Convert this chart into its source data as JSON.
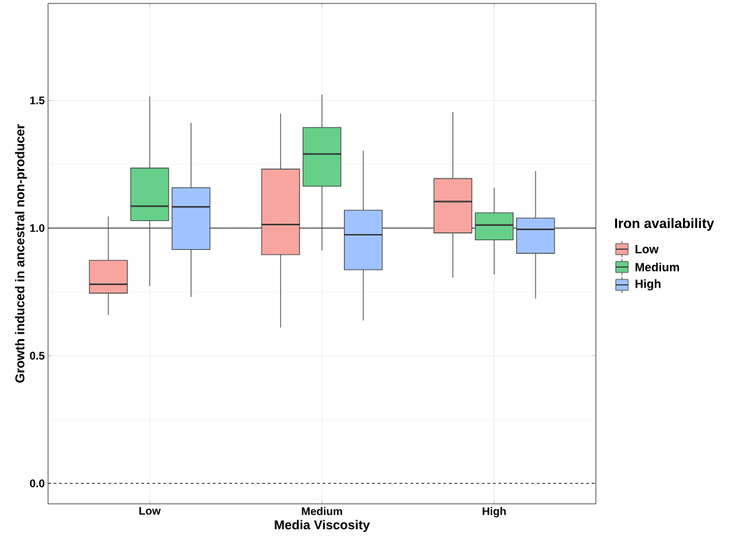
{
  "chart_data": {
    "type": "box",
    "xlabel": "Media Viscosity",
    "ylabel": "Growth induced in ancestral non-producer",
    "legend_title": "Iron availability",
    "categories": [
      "Low",
      "Medium",
      "High"
    ],
    "series": [
      {
        "name": "Low",
        "color": "#f8a59f",
        "boxes": [
          {
            "low": 0.66,
            "q1": 0.745,
            "median": 0.78,
            "q3": 0.874,
            "high": 1.046
          },
          {
            "low": 0.61,
            "q1": 0.896,
            "median": 1.014,
            "q3": 1.231,
            "high": 1.448
          },
          {
            "low": 0.806,
            "q1": 0.981,
            "median": 1.104,
            "q3": 1.194,
            "high": 1.455
          }
        ]
      },
      {
        "name": "Medium",
        "color": "#66d08a",
        "boxes": [
          {
            "low": 0.772,
            "q1": 1.029,
            "median": 1.086,
            "q3": 1.235,
            "high": 1.516
          },
          {
            "low": 0.913,
            "q1": 1.164,
            "median": 1.29,
            "q3": 1.394,
            "high": 1.523
          },
          {
            "low": 0.819,
            "q1": 0.954,
            "median": 1.012,
            "q3": 1.06,
            "high": 1.158
          }
        ]
      },
      {
        "name": "High",
        "color": "#a0c3ff",
        "boxes": [
          {
            "low": 0.73,
            "q1": 0.916,
            "median": 1.083,
            "q3": 1.158,
            "high": 1.412
          },
          {
            "low": 0.638,
            "q1": 0.837,
            "median": 0.974,
            "q3": 1.07,
            "high": 1.303
          },
          {
            "low": 0.724,
            "q1": 0.901,
            "median": 0.995,
            "q3": 1.039,
            "high": 1.224
          }
        ]
      }
    ],
    "ylim": [
      -0.08,
      1.88
    ],
    "yticks": [
      {
        "value": 0,
        "label": "0.0"
      },
      {
        "value": 0.5,
        "label": "0.5"
      },
      {
        "value": 1,
        "label": "1.0"
      },
      {
        "value": 1.5,
        "label": "1.5"
      }
    ],
    "ref_lines": [
      {
        "axis": "y",
        "value": 1,
        "line_style": "solid"
      },
      {
        "axis": "y",
        "value": 0,
        "line_style": "dashed"
      }
    ],
    "grid": true,
    "legend": "right"
  }
}
